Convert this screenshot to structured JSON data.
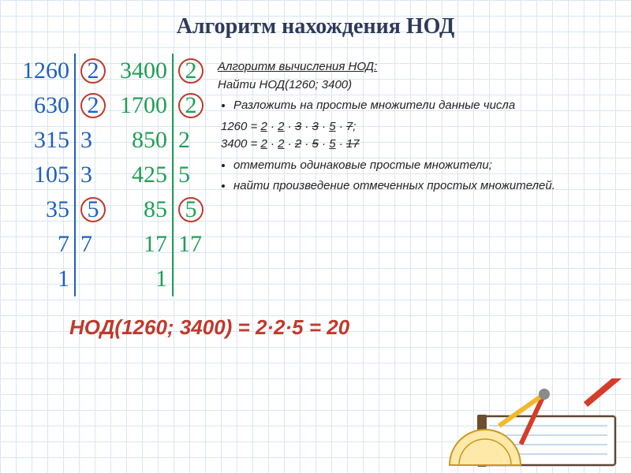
{
  "title": "Алгоритм нахождения НОД",
  "colors": {
    "col1": "#1f5fbf",
    "col2": "#1f9f55",
    "circle": "#c0392b",
    "result": "#c0392b",
    "heading": "#2e3a59",
    "grid_line": "#d9e6f2",
    "bg": "#ffffff"
  },
  "factorizations": [
    {
      "left": [
        "1260",
        "630",
        "315",
        "105",
        "35",
        "7",
        "1"
      ],
      "right": [
        "2",
        "2",
        "3",
        "3",
        "5",
        "7"
      ],
      "circled": [
        0,
        1,
        4
      ]
    },
    {
      "left": [
        "3400",
        "1700",
        "850",
        "425",
        "85",
        "17",
        "1"
      ],
      "right": [
        "2",
        "2",
        "2",
        "5",
        "5",
        "17"
      ],
      "circled": [
        0,
        1,
        4
      ]
    }
  ],
  "algo": {
    "heading": "Алгоритм вычисления НОД:",
    "task": "Найти НОД(1260; 3400)",
    "bullet1": "Разложить на простые множители данные числа",
    "line1_pre": "1260 = ",
    "line1_parts": [
      {
        "t": "2",
        "u": true
      },
      {
        "t": " · "
      },
      {
        "t": "2",
        "u": true
      },
      {
        "t": " · "
      },
      {
        "t": "3",
        "s": true
      },
      {
        "t": " · "
      },
      {
        "t": "3",
        "s": true
      },
      {
        "t": " · "
      },
      {
        "t": "5",
        "u": true
      },
      {
        "t": " · "
      },
      {
        "t": "7",
        "s": true
      },
      {
        "t": ";"
      }
    ],
    "line2_pre": "3400 = ",
    "line2_parts": [
      {
        "t": "2",
        "u": true
      },
      {
        "t": " · "
      },
      {
        "t": "2",
        "u": true
      },
      {
        "t": " · "
      },
      {
        "t": "2",
        "s": true
      },
      {
        "t": " · "
      },
      {
        "t": "5",
        "s": true
      },
      {
        "t": " · "
      },
      {
        "t": "5",
        "u": true
      },
      {
        "t": " · "
      },
      {
        "t": "17",
        "s": true
      }
    ],
    "bullet2": "отметить одинаковые простые множители;",
    "bullet3": "найти произведение отмеченных простых множителей."
  },
  "result": "НОД(1260; 3400) = 2·2·5 = 20"
}
